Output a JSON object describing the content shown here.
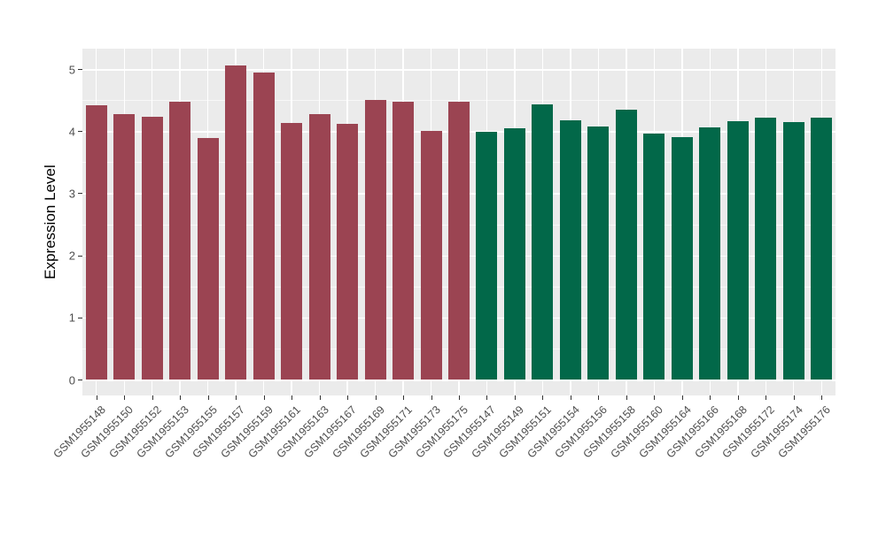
{
  "chart_data": {
    "type": "bar",
    "title": "",
    "xlabel": "",
    "ylabel": "Expression Level",
    "ylim": [
      -0.26,
      5.33
    ],
    "yticks": [
      0,
      1,
      2,
      3,
      4,
      5
    ],
    "grid": true,
    "legend": false,
    "categories": [
      "GSM1955148",
      "GSM1955150",
      "GSM1955152",
      "GSM1955153",
      "GSM1955155",
      "GSM1955157",
      "GSM1955159",
      "GSM1955161",
      "GSM1955163",
      "GSM1955167",
      "GSM1955169",
      "GSM1955171",
      "GSM1955173",
      "GSM1955175",
      "GSM1955147",
      "GSM1955149",
      "GSM1955151",
      "GSM1955154",
      "GSM1955156",
      "GSM1955158",
      "GSM1955160",
      "GSM1955164",
      "GSM1955166",
      "GSM1955168",
      "GSM1955172",
      "GSM1955174",
      "GSM1955176"
    ],
    "values": [
      4.42,
      4.27,
      4.23,
      4.48,
      3.89,
      5.05,
      4.95,
      4.13,
      4.27,
      4.12,
      4.5,
      4.47,
      4.0,
      4.48,
      3.99,
      4.05,
      4.43,
      4.17,
      4.07,
      4.35,
      3.96,
      3.91,
      4.06,
      4.16,
      4.22,
      4.15,
      4.22
    ],
    "groups": [
      "maroon",
      "maroon",
      "maroon",
      "maroon",
      "maroon",
      "maroon",
      "maroon",
      "maroon",
      "maroon",
      "maroon",
      "maroon",
      "maroon",
      "maroon",
      "maroon",
      "green",
      "green",
      "green",
      "green",
      "green",
      "green",
      "green",
      "green",
      "green",
      "green",
      "green",
      "green",
      "green"
    ],
    "group_colors": {
      "maroon": "#9B4452",
      "green": "#026849"
    }
  },
  "style": {
    "panel_background": "#EBEBEB",
    "grid_color": "#FFFFFF",
    "tick_color": "#333333",
    "axis_text_color": "#4D4D4D"
  }
}
